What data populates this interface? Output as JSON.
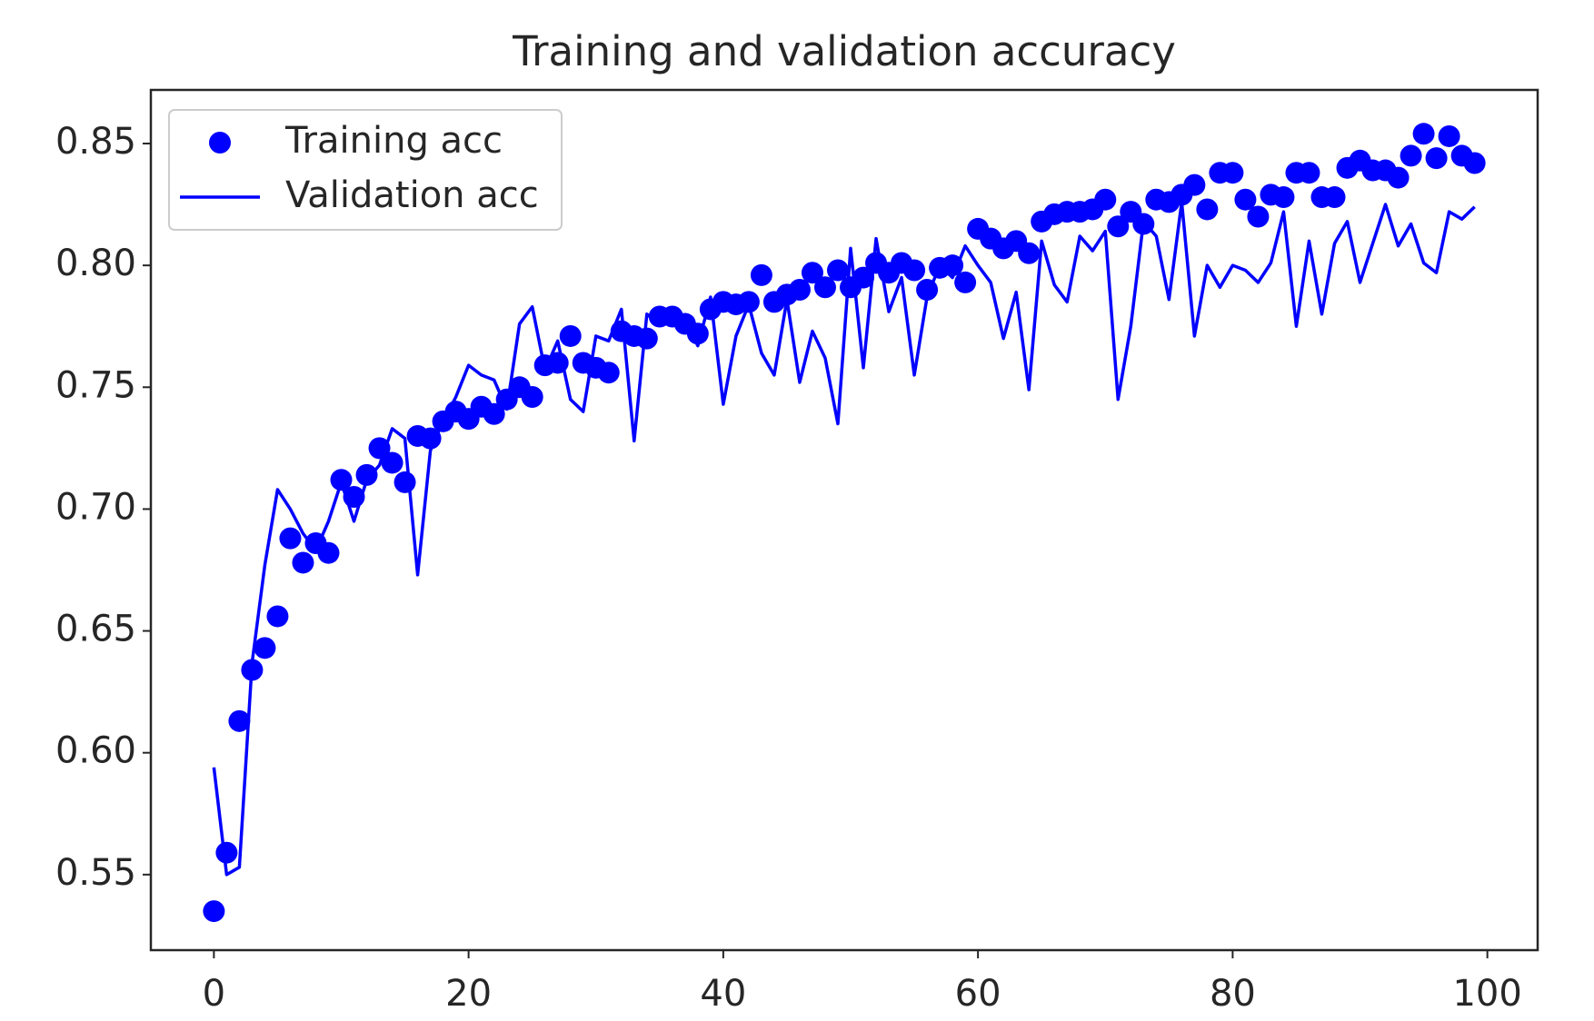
{
  "chart_data": {
    "type": "scatter-line",
    "title": "Training and validation accuracy",
    "x": [
      0,
      1,
      2,
      3,
      4,
      5,
      6,
      7,
      8,
      9,
      10,
      11,
      12,
      13,
      14,
      15,
      16,
      17,
      18,
      19,
      20,
      21,
      22,
      23,
      24,
      25,
      26,
      27,
      28,
      29,
      30,
      31,
      32,
      33,
      34,
      35,
      36,
      37,
      38,
      39,
      40,
      41,
      42,
      43,
      44,
      45,
      46,
      47,
      48,
      49,
      50,
      51,
      52,
      53,
      54,
      55,
      56,
      57,
      58,
      59,
      60,
      61,
      62,
      63,
      64,
      65,
      66,
      67,
      68,
      69,
      70,
      71,
      72,
      73,
      74,
      75,
      76,
      77,
      78,
      79,
      80,
      81,
      82,
      83,
      84,
      85,
      86,
      87,
      88,
      89,
      90,
      91,
      92,
      93,
      94,
      95,
      96,
      97,
      98,
      99
    ],
    "series": [
      {
        "name": "Training acc",
        "color": "#0000ff",
        "marker": "o",
        "values": [
          0.535,
          0.559,
          0.613,
          0.634,
          0.643,
          0.656,
          0.688,
          0.678,
          0.686,
          0.682,
          0.712,
          0.705,
          0.714,
          0.725,
          0.719,
          0.711,
          0.73,
          0.729,
          0.736,
          0.74,
          0.737,
          0.742,
          0.739,
          0.745,
          0.75,
          0.746,
          0.759,
          0.76,
          0.771,
          0.76,
          0.758,
          0.756,
          0.773,
          0.771,
          0.77,
          0.779,
          0.779,
          0.776,
          0.772,
          0.782,
          0.785,
          0.784,
          0.785,
          0.796,
          0.785,
          0.788,
          0.79,
          0.797,
          0.791,
          0.798,
          0.791,
          0.795,
          0.801,
          0.797,
          0.801,
          0.798,
          0.79,
          0.799,
          0.8,
          0.793,
          0.815,
          0.811,
          0.807,
          0.81,
          0.805,
          0.818,
          0.821,
          0.822,
          0.822,
          0.823,
          0.827,
          0.816,
          0.822,
          0.817,
          0.827,
          0.826,
          0.829,
          0.833,
          0.823,
          0.838,
          0.838,
          0.827,
          0.82,
          0.829,
          0.828,
          0.838,
          0.838,
          0.828,
          0.828,
          0.84,
          0.843,
          0.839,
          0.839,
          0.836,
          0.845,
          0.854,
          0.844,
          0.853,
          0.845,
          0.842
        ]
      },
      {
        "name": "Validation acc",
        "color": "#0000ff",
        "linestyle": "-",
        "values": [
          0.594,
          0.55,
          0.553,
          0.637,
          0.677,
          0.708,
          0.7,
          0.69,
          0.683,
          0.695,
          0.711,
          0.695,
          0.712,
          0.718,
          0.733,
          0.729,
          0.673,
          0.724,
          0.736,
          0.746,
          0.759,
          0.755,
          0.753,
          0.741,
          0.776,
          0.783,
          0.757,
          0.769,
          0.745,
          0.74,
          0.771,
          0.769,
          0.782,
          0.728,
          0.78,
          0.776,
          0.78,
          0.778,
          0.767,
          0.787,
          0.743,
          0.771,
          0.784,
          0.764,
          0.755,
          0.786,
          0.752,
          0.773,
          0.762,
          0.735,
          0.807,
          0.758,
          0.811,
          0.781,
          0.795,
          0.755,
          0.787,
          0.8,
          0.795,
          0.808,
          0.8,
          0.793,
          0.77,
          0.789,
          0.749,
          0.81,
          0.792,
          0.785,
          0.812,
          0.806,
          0.814,
          0.745,
          0.775,
          0.818,
          0.812,
          0.786,
          0.826,
          0.771,
          0.8,
          0.791,
          0.8,
          0.798,
          0.793,
          0.801,
          0.822,
          0.775,
          0.81,
          0.78,
          0.809,
          0.818,
          0.793,
          0.809,
          0.825,
          0.808,
          0.817,
          0.801,
          0.797,
          0.822,
          0.819,
          0.824
        ]
      }
    ],
    "xlim": [
      -4.95,
      103.95
    ],
    "xticks": [
      0,
      20,
      40,
      60,
      80,
      100
    ],
    "ylim": [
      0.519,
      0.872
    ],
    "yticks": [
      0.55,
      {
        "value": 0.6,
        "label": "0.60"
      },
      0.65,
      {
        "value": 0.7,
        "label": "0.70"
      },
      0.75,
      {
        "value": 0.8,
        "label": "0.80"
      },
      0.85
    ],
    "legend": "upper left"
  }
}
